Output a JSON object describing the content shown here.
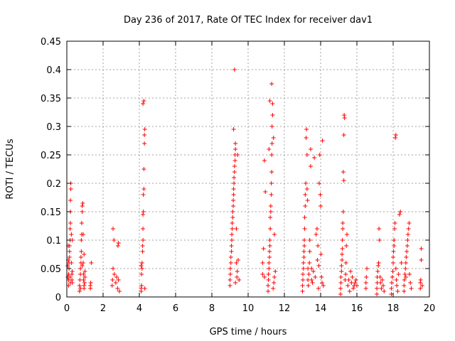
{
  "chart_data": {
    "type": "scatter",
    "title": "Day 236 of 2017, Rate Of TEC Index for receiver dav1",
    "xlabel": "GPS time / hours",
    "ylabel": "ROTI / TECUs",
    "xlim": [
      0,
      20
    ],
    "ylim": [
      0,
      0.45
    ],
    "x_ticks": [
      0,
      2,
      4,
      6,
      8,
      10,
      12,
      14,
      16,
      18,
      20
    ],
    "y_ticks": [
      0,
      0.05,
      0.1,
      0.15,
      0.2,
      0.25,
      0.3,
      0.35,
      0.4,
      0.45
    ],
    "x_tick_labels": [
      "0",
      "2",
      "4",
      "6",
      "8",
      "10",
      "12",
      "14",
      "16",
      "18",
      "20"
    ],
    "y_tick_labels": [
      "0",
      "0.05",
      "0.1",
      "0.15",
      "0.2",
      "0.25",
      "0.3",
      "0.35",
      "0.4",
      "0.45"
    ],
    "grid": true,
    "marker": "+",
    "color": "#ff0000",
    "series": [
      {
        "name": "dav1",
        "points": [
          [
            0.1,
            0.02
          ],
          [
            0.1,
            0.03
          ],
          [
            0.1,
            0.04
          ],
          [
            0.12,
            0.05
          ],
          [
            0.12,
            0.06
          ],
          [
            0.15,
            0.07
          ],
          [
            0.15,
            0.08
          ],
          [
            0.15,
            0.09
          ],
          [
            0.18,
            0.1
          ],
          [
            0.18,
            0.12
          ],
          [
            0.2,
            0.13
          ],
          [
            0.2,
            0.15
          ],
          [
            0.2,
            0.17
          ],
          [
            0.22,
            0.19
          ],
          [
            0.22,
            0.2
          ],
          [
            0.25,
            0.11
          ],
          [
            0.25,
            0.06
          ],
          [
            0.28,
            0.04
          ],
          [
            0.28,
            0.03
          ],
          [
            0.3,
            0.025
          ],
          [
            0.3,
            0.045
          ],
          [
            0.05,
            0.035
          ],
          [
            0.05,
            0.055
          ],
          [
            0.08,
            0.065
          ],
          [
            0.08,
            0.09
          ],
          [
            0.3,
            0.1
          ],
          [
            0.2,
            0.025
          ],
          [
            0.18,
            0.035
          ],
          [
            0.7,
            0.01
          ],
          [
            0.7,
            0.02
          ],
          [
            0.72,
            0.03
          ],
          [
            0.75,
            0.04
          ],
          [
            0.75,
            0.05
          ],
          [
            0.78,
            0.06
          ],
          [
            0.78,
            0.07
          ],
          [
            0.8,
            0.08
          ],
          [
            0.8,
            0.1
          ],
          [
            0.82,
            0.11
          ],
          [
            0.82,
            0.13
          ],
          [
            0.85,
            0.15
          ],
          [
            0.85,
            0.16
          ],
          [
            0.88,
            0.165
          ],
          [
            0.9,
            0.11
          ],
          [
            0.9,
            0.06
          ],
          [
            0.92,
            0.04
          ],
          [
            0.92,
            0.03
          ],
          [
            0.95,
            0.02
          ],
          [
            0.95,
            0.015
          ],
          [
            0.98,
            0.025
          ],
          [
            1.0,
            0.035
          ],
          [
            1.0,
            0.045
          ],
          [
            0.75,
            0.015
          ],
          [
            0.85,
            0.055
          ],
          [
            0.95,
            0.075
          ],
          [
            1.3,
            0.015
          ],
          [
            1.3,
            0.02
          ],
          [
            1.32,
            0.025
          ],
          [
            1.35,
            0.06
          ],
          [
            2.5,
            0.02
          ],
          [
            2.52,
            0.03
          ],
          [
            2.55,
            0.05
          ],
          [
            2.55,
            0.12
          ],
          [
            2.6,
            0.1
          ],
          [
            2.62,
            0.04
          ],
          [
            2.7,
            0.025
          ],
          [
            2.75,
            0.035
          ],
          [
            2.8,
            0.015
          ],
          [
            2.82,
            0.09
          ],
          [
            2.85,
            0.095
          ],
          [
            2.85,
            0.03
          ],
          [
            2.9,
            0.01
          ],
          [
            4.1,
            0.01
          ],
          [
            4.1,
            0.015
          ],
          [
            4.12,
            0.02
          ],
          [
            4.12,
            0.04
          ],
          [
            4.15,
            0.05
          ],
          [
            4.15,
            0.06
          ],
          [
            4.18,
            0.08
          ],
          [
            4.18,
            0.09
          ],
          [
            4.2,
            0.1
          ],
          [
            4.2,
            0.12
          ],
          [
            4.2,
            0.145
          ],
          [
            4.22,
            0.15
          ],
          [
            4.22,
            0.18
          ],
          [
            4.25,
            0.19
          ],
          [
            4.25,
            0.225
          ],
          [
            4.28,
            0.27
          ],
          [
            4.28,
            0.285
          ],
          [
            4.3,
            0.295
          ],
          [
            4.2,
            0.34
          ],
          [
            4.25,
            0.345
          ],
          [
            4.3,
            0.015
          ],
          [
            4.1,
            0.055
          ],
          [
            9.0,
            0.02
          ],
          [
            9.0,
            0.03
          ],
          [
            9.02,
            0.04
          ],
          [
            9.02,
            0.05
          ],
          [
            9.05,
            0.06
          ],
          [
            9.05,
            0.07
          ],
          [
            9.08,
            0.08
          ],
          [
            9.08,
            0.09
          ],
          [
            9.1,
            0.1
          ],
          [
            9.1,
            0.11
          ],
          [
            9.12,
            0.12
          ],
          [
            9.12,
            0.13
          ],
          [
            9.15,
            0.14
          ],
          [
            9.15,
            0.15
          ],
          [
            9.18,
            0.16
          ],
          [
            9.18,
            0.17
          ],
          [
            9.2,
            0.18
          ],
          [
            9.2,
            0.19
          ],
          [
            9.22,
            0.2
          ],
          [
            9.22,
            0.21
          ],
          [
            9.25,
            0.22
          ],
          [
            9.25,
            0.23
          ],
          [
            9.28,
            0.24
          ],
          [
            9.28,
            0.25
          ],
          [
            9.3,
            0.26
          ],
          [
            9.3,
            0.27
          ],
          [
            9.2,
            0.295
          ],
          [
            9.25,
            0.4
          ],
          [
            9.35,
            0.06
          ],
          [
            9.35,
            0.12
          ],
          [
            9.38,
            0.035
          ],
          [
            9.4,
            0.045
          ],
          [
            9.42,
            0.25
          ],
          [
            9.45,
            0.065
          ],
          [
            9.5,
            0.03
          ],
          [
            9.3,
            0.025
          ],
          [
            10.8,
            0.04
          ],
          [
            10.8,
            0.06
          ],
          [
            10.85,
            0.085
          ],
          [
            10.9,
            0.24
          ],
          [
            10.95,
            0.185
          ],
          [
            10.9,
            0.035
          ],
          [
            11.1,
            0.01
          ],
          [
            11.1,
            0.02
          ],
          [
            11.12,
            0.03
          ],
          [
            11.12,
            0.04
          ],
          [
            11.15,
            0.05
          ],
          [
            11.15,
            0.06
          ],
          [
            11.18,
            0.07
          ],
          [
            11.18,
            0.08
          ],
          [
            11.2,
            0.09
          ],
          [
            11.2,
            0.1
          ],
          [
            11.22,
            0.12
          ],
          [
            11.22,
            0.14
          ],
          [
            11.25,
            0.15
          ],
          [
            11.25,
            0.16
          ],
          [
            11.28,
            0.18
          ],
          [
            11.28,
            0.2
          ],
          [
            11.3,
            0.22
          ],
          [
            11.3,
            0.25
          ],
          [
            11.32,
            0.27
          ],
          [
            11.32,
            0.3
          ],
          [
            11.35,
            0.32
          ],
          [
            11.35,
            0.34
          ],
          [
            11.2,
            0.345
          ],
          [
            11.3,
            0.375
          ],
          [
            11.15,
            0.26
          ],
          [
            11.4,
            0.28
          ],
          [
            11.38,
            0.015
          ],
          [
            11.42,
            0.025
          ],
          [
            11.45,
            0.035
          ],
          [
            11.45,
            0.11
          ],
          [
            11.5,
            0.045
          ],
          [
            13.0,
            0.01
          ],
          [
            13.0,
            0.02
          ],
          [
            13.02,
            0.03
          ],
          [
            13.02,
            0.04
          ],
          [
            13.05,
            0.05
          ],
          [
            13.05,
            0.06
          ],
          [
            13.08,
            0.07
          ],
          [
            13.08,
            0.08
          ],
          [
            13.1,
            0.09
          ],
          [
            13.1,
            0.1
          ],
          [
            13.12,
            0.12
          ],
          [
            13.12,
            0.14
          ],
          [
            13.15,
            0.16
          ],
          [
            13.15,
            0.18
          ],
          [
            13.18,
            0.2
          ],
          [
            13.2,
            0.28
          ],
          [
            13.22,
            0.295
          ],
          [
            13.25,
            0.25
          ],
          [
            13.25,
            0.19
          ],
          [
            13.28,
            0.17
          ],
          [
            13.3,
            0.05
          ],
          [
            13.3,
            0.03
          ],
          [
            13.32,
            0.02
          ],
          [
            13.35,
            0.04
          ],
          [
            13.38,
            0.06
          ],
          [
            13.4,
            0.08
          ],
          [
            13.4,
            0.1
          ],
          [
            13.45,
            0.26
          ],
          [
            13.45,
            0.23
          ],
          [
            13.5,
            0.05
          ],
          [
            13.5,
            0.03
          ],
          [
            13.55,
            0.025
          ],
          [
            13.6,
            0.045
          ],
          [
            13.65,
            0.245
          ],
          [
            13.7,
            0.035
          ],
          [
            13.75,
            0.11
          ],
          [
            13.8,
            0.12
          ],
          [
            13.82,
            0.065
          ],
          [
            13.85,
            0.09
          ],
          [
            13.88,
            0.015
          ],
          [
            13.9,
            0.055
          ],
          [
            13.92,
            0.2
          ],
          [
            13.95,
            0.25
          ],
          [
            13.98,
            0.18
          ],
          [
            14.0,
            0.16
          ],
          [
            14.02,
            0.075
          ],
          [
            14.05,
            0.035
          ],
          [
            14.08,
            0.025
          ],
          [
            14.1,
            0.275
          ],
          [
            14.15,
            0.02
          ],
          [
            15.1,
            0.005
          ],
          [
            15.1,
            0.015
          ],
          [
            15.12,
            0.025
          ],
          [
            15.12,
            0.035
          ],
          [
            15.15,
            0.045
          ],
          [
            15.15,
            0.055
          ],
          [
            15.18,
            0.065
          ],
          [
            15.18,
            0.075
          ],
          [
            15.2,
            0.085
          ],
          [
            15.2,
            0.1
          ],
          [
            15.22,
            0.12
          ],
          [
            15.22,
            0.13
          ],
          [
            15.25,
            0.15
          ],
          [
            15.25,
            0.22
          ],
          [
            15.28,
            0.205
          ],
          [
            15.28,
            0.285
          ],
          [
            15.3,
            0.32
          ],
          [
            15.32,
            0.315
          ],
          [
            15.35,
            0.03
          ],
          [
            15.38,
            0.04
          ],
          [
            15.4,
            0.06
          ],
          [
            15.42,
            0.09
          ],
          [
            15.45,
            0.11
          ],
          [
            15.5,
            0.02
          ],
          [
            15.55,
            0.03
          ],
          [
            15.6,
            0.01
          ],
          [
            15.65,
            0.045
          ],
          [
            15.7,
            0.025
          ],
          [
            15.75,
            0.035
          ],
          [
            15.8,
            0.015
          ],
          [
            15.85,
            0.02
          ],
          [
            15.9,
            0.025
          ],
          [
            15.95,
            0.03
          ],
          [
            16.0,
            0.02
          ],
          [
            16.5,
            0.015
          ],
          [
            16.5,
            0.025
          ],
          [
            16.52,
            0.035
          ],
          [
            16.55,
            0.05
          ],
          [
            17.1,
            0.005
          ],
          [
            17.1,
            0.015
          ],
          [
            17.12,
            0.025
          ],
          [
            17.12,
            0.035
          ],
          [
            17.15,
            0.045
          ],
          [
            17.18,
            0.055
          ],
          [
            17.2,
            0.06
          ],
          [
            17.22,
            0.12
          ],
          [
            17.25,
            0.1
          ],
          [
            17.28,
            0.035
          ],
          [
            17.3,
            0.025
          ],
          [
            17.35,
            0.015
          ],
          [
            17.4,
            0.03
          ],
          [
            17.45,
            0.02
          ],
          [
            17.5,
            0.01
          ],
          [
            17.9,
            0.005
          ],
          [
            17.9,
            0.015
          ],
          [
            17.92,
            0.025
          ],
          [
            17.95,
            0.035
          ],
          [
            17.98,
            0.045
          ],
          [
            18.0,
            0.06
          ],
          [
            18.0,
            0.07
          ],
          [
            18.02,
            0.08
          ],
          [
            18.05,
            0.09
          ],
          [
            18.05,
            0.1
          ],
          [
            18.08,
            0.12
          ],
          [
            18.1,
            0.13
          ],
          [
            18.12,
            0.28
          ],
          [
            18.15,
            0.285
          ],
          [
            18.15,
            0.05
          ],
          [
            18.18,
            0.03
          ],
          [
            18.2,
            0.02
          ],
          [
            18.25,
            0.01
          ],
          [
            18.3,
            0.04
          ],
          [
            18.35,
            0.145
          ],
          [
            18.4,
            0.15
          ],
          [
            18.45,
            0.06
          ],
          [
            18.6,
            0.01
          ],
          [
            18.6,
            0.02
          ],
          [
            18.62,
            0.03
          ],
          [
            18.65,
            0.04
          ],
          [
            18.68,
            0.05
          ],
          [
            18.7,
            0.06
          ],
          [
            18.72,
            0.07
          ],
          [
            18.75,
            0.08
          ],
          [
            18.78,
            0.09
          ],
          [
            18.8,
            0.1
          ],
          [
            18.82,
            0.11
          ],
          [
            18.85,
            0.12
          ],
          [
            18.88,
            0.13
          ],
          [
            18.9,
            0.04
          ],
          [
            18.95,
            0.025
          ],
          [
            19.0,
            0.015
          ],
          [
            18.7,
            0.035
          ],
          [
            19.5,
            0.015
          ],
          [
            19.5,
            0.025
          ],
          [
            19.52,
            0.03
          ],
          [
            19.55,
            0.065
          ],
          [
            19.55,
            0.085
          ],
          [
            19.6,
            0.02
          ]
        ]
      }
    ]
  }
}
